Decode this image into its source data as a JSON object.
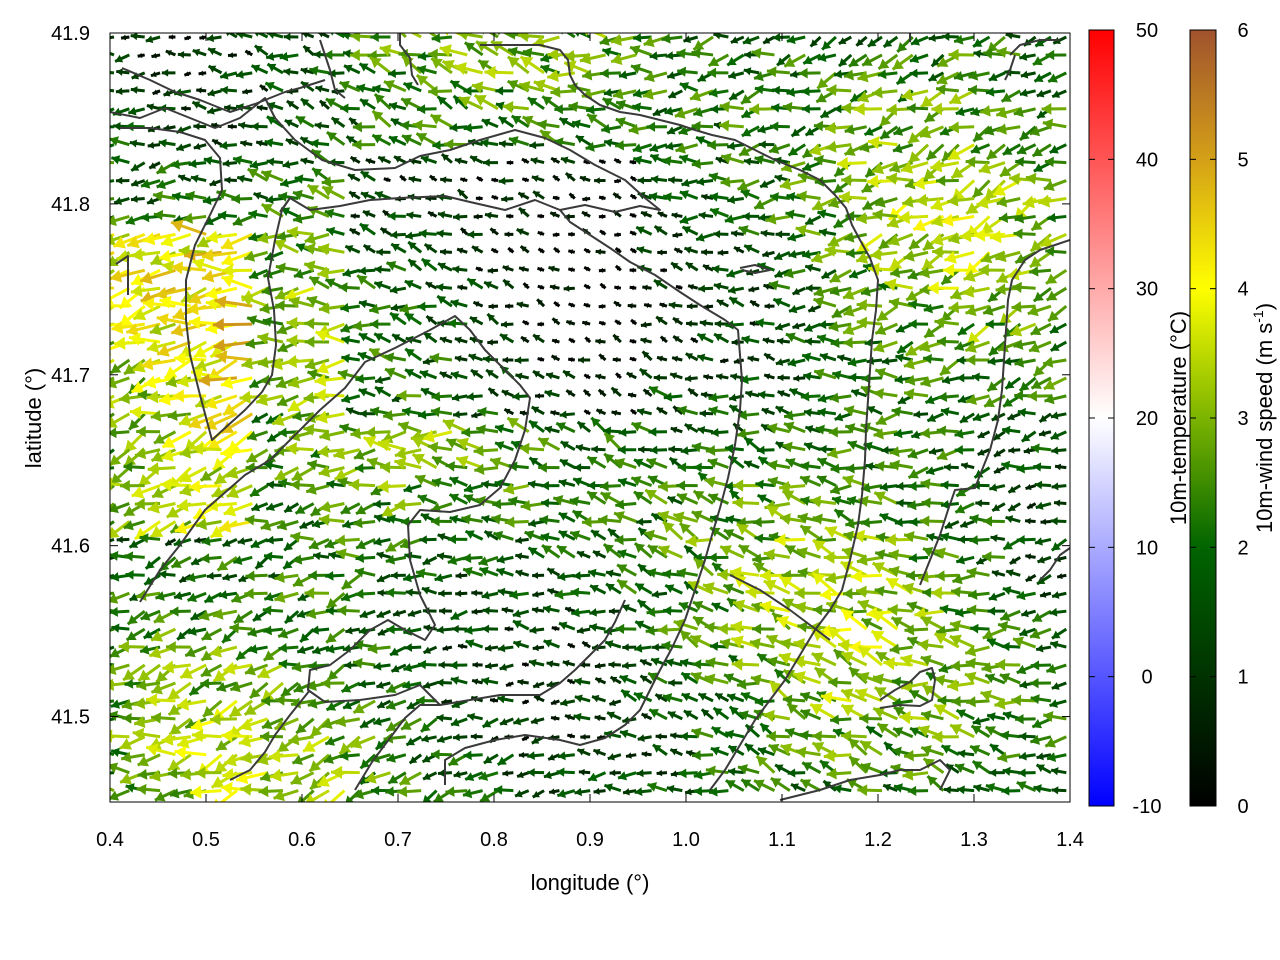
{
  "chart_data": {
    "type": "vector-field",
    "xlabel": "longitude (°)",
    "ylabel": "latitude (°)",
    "xlim": [
      0.4,
      1.4
    ],
    "ylim": [
      41.45,
      41.9
    ],
    "x_ticks": [
      "0.4",
      "0.5",
      "0.6",
      "0.7",
      "0.8",
      "0.9",
      "1.0",
      "1.1",
      "1.2",
      "1.3",
      "1.4"
    ],
    "y_ticks": [
      "41.5",
      "41.6",
      "41.7",
      "41.8",
      "41.9"
    ],
    "x_tick_values": [
      0.4,
      0.5,
      0.6,
      0.7,
      0.8,
      0.9,
      1.0,
      1.1,
      1.2,
      1.3,
      1.4
    ],
    "y_tick_values": [
      41.5,
      41.6,
      41.7,
      41.8,
      41.9
    ],
    "grid": false,
    "colorbars": [
      {
        "name": "temperature",
        "label": "10m-temperature (°C)",
        "range": [
          -10,
          50
        ],
        "ticks": [
          "-10",
          "0",
          "10",
          "20",
          "30",
          "40",
          "50"
        ],
        "tick_values": [
          -10,
          0,
          10,
          20,
          30,
          40,
          50
        ],
        "colors": [
          "#0000ff",
          "#ffffff",
          "#ff0000"
        ]
      },
      {
        "name": "wind_speed",
        "label": "10m-wind speed (m s-1)",
        "label_main": "10m-wind speed (m s",
        "label_sup": "-1",
        "label_end": ")",
        "range": [
          0,
          6
        ],
        "ticks": [
          "0",
          "1",
          "2",
          "3",
          "4",
          "5",
          "6"
        ],
        "tick_values": [
          0,
          1,
          2,
          3,
          4,
          5,
          6
        ],
        "colors": [
          "#000000",
          "#006400",
          "#7cb400",
          "#ffff00",
          "#d4a017",
          "#a0522d"
        ]
      }
    ],
    "wind_field": {
      "predominant_direction": "westward (from east)",
      "lon_step": 0.016,
      "lat_step": 0.0105,
      "speed_range": [
        0,
        5.5
      ]
    },
    "contour_color": "#3a3a3a"
  }
}
